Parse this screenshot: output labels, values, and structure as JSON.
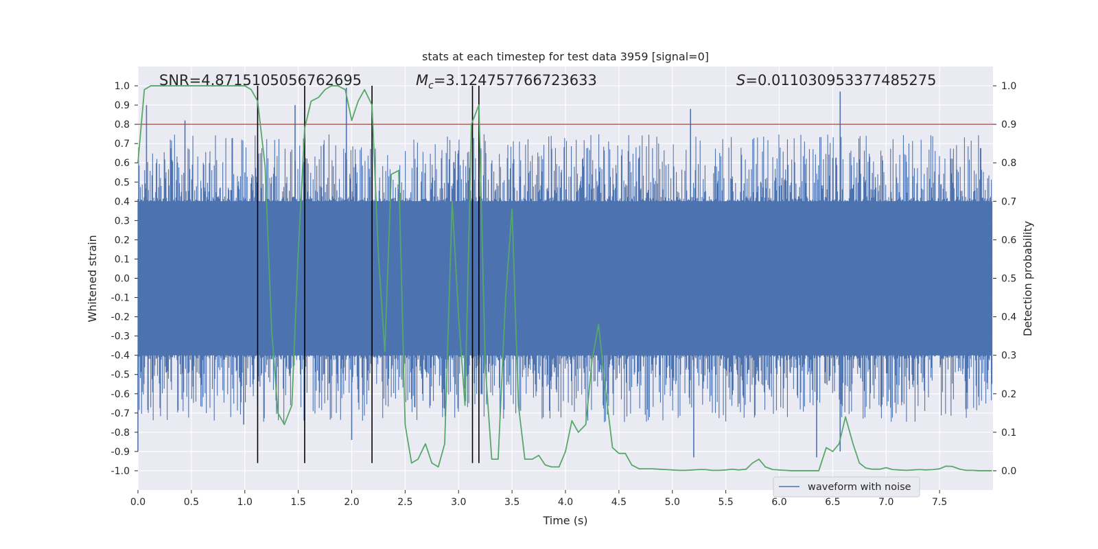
{
  "chart_data": {
    "type": "line",
    "title": "stats at each timestep for test data 3959 [signal=0]",
    "xlabel": "Time (s)",
    "ylabel": "Whitened strain",
    "ylabel_right": "Detection probability",
    "xlim": [
      0.0,
      8.0
    ],
    "ylim": [
      -1.1,
      1.1
    ],
    "ylim_right": [
      -0.05,
      1.05
    ],
    "x_ticks": [
      0.0,
      0.5,
      1.0,
      1.5,
      2.0,
      2.5,
      3.0,
      3.5,
      4.0,
      4.5,
      5.0,
      5.5,
      6.0,
      6.5,
      7.0,
      7.5
    ],
    "x_tick_labels": [
      "0.0",
      "0.5",
      "1.0",
      "1.5",
      "2.0",
      "2.5",
      "3.0",
      "3.5",
      "4.0",
      "4.5",
      "5.0",
      "5.5",
      "6.0",
      "6.5",
      "7.0",
      "7.5"
    ],
    "y_ticks": [
      1.0,
      0.9,
      0.8,
      0.7,
      0.6,
      0.5,
      0.4,
      0.3,
      0.2,
      0.1,
      0.0,
      -0.1,
      -0.2,
      -0.3,
      -0.4,
      -0.5,
      -0.6,
      -0.7,
      -0.8,
      -0.9,
      -1.0
    ],
    "y_tick_labels": [
      "1.0",
      "0.9",
      "0.8",
      "0.7",
      "0.6",
      "0.5",
      "0.4",
      "0.3",
      "0.2",
      "0.1",
      "0.0",
      "-0.1",
      "-0.2",
      "-0.3",
      "-0.4",
      "-0.5",
      "-0.6",
      "-0.7",
      "-0.8",
      "-0.9",
      "-1.0"
    ],
    "y_ticks_right": [
      1.0,
      0.9,
      0.8,
      0.7,
      0.6,
      0.5,
      0.4,
      0.3,
      0.2,
      0.1,
      0.0
    ],
    "y_tick_labels_right": [
      "1.0",
      "0.9",
      "0.8",
      "0.7",
      "0.6",
      "0.5",
      "0.4",
      "0.3",
      "0.2",
      "0.1",
      "0.0"
    ],
    "grid": true,
    "legend": {
      "placement": "lower-right",
      "entries": [
        "waveform with noise"
      ]
    },
    "annotations": {
      "snr": "SNR=4.871510505676269​5",
      "mc_symbol": "M",
      "mc_sub": "c",
      "mc_value": "=3.124757766723633",
      "s_symbol": "S",
      "s_value": "=0.011030953377485275"
    },
    "threshold": {
      "value": 0.8,
      "axis": "left",
      "color": "#c0392b"
    },
    "vertical_markers": [
      1.12,
      1.56,
      2.19,
      3.13,
      3.19
    ],
    "series": [
      {
        "name": "waveform with noise",
        "axis": "left",
        "color": "#4c72b0",
        "kind": "dense noise",
        "x_range": [
          0.0,
          7.99
        ],
        "typical_band": [
          -0.4,
          0.4
        ],
        "notable_peaks": [
          {
            "x": 0.08,
            "y": 0.9
          },
          {
            "x": 0.44,
            "y": 0.82
          },
          {
            "x": 1.47,
            "y": 0.9
          },
          {
            "x": 1.95,
            "y": 0.99
          },
          {
            "x": 5.17,
            "y": 0.88
          },
          {
            "x": 6.57,
            "y": 0.97
          },
          {
            "x": 0.0,
            "y": -0.9
          },
          {
            "x": 0.99,
            "y": -0.76
          },
          {
            "x": 2.0,
            "y": -0.84
          },
          {
            "x": 5.2,
            "y": -0.93
          },
          {
            "x": 6.35,
            "y": -0.93
          },
          {
            "x": 6.57,
            "y": -0.9
          }
        ]
      },
      {
        "name": "",
        "axis": "right",
        "color": "#55a868",
        "x": [
          0.0,
          0.06,
          0.12,
          0.2,
          0.3,
          0.4,
          0.5,
          0.6,
          0.7,
          0.8,
          0.9,
          1.0,
          1.06,
          1.12,
          1.19,
          1.25,
          1.31,
          1.37,
          1.44,
          1.5,
          1.56,
          1.62,
          1.69,
          1.75,
          1.81,
          1.87,
          1.94,
          2.0,
          2.06,
          2.12,
          2.19,
          2.25,
          2.31,
          2.37,
          2.44,
          2.5,
          2.56,
          2.62,
          2.69,
          2.75,
          2.81,
          2.87,
          2.94,
          3.0,
          3.06,
          3.12,
          3.19,
          3.25,
          3.31,
          3.37,
          3.44,
          3.5,
          3.56,
          3.62,
          3.69,
          3.75,
          3.81,
          3.87,
          3.94,
          4.0,
          4.06,
          4.12,
          4.19,
          4.25,
          4.31,
          4.37,
          4.44,
          4.5,
          4.56,
          4.62,
          4.69,
          4.75,
          4.81,
          4.87,
          4.94,
          5.0,
          5.06,
          5.12,
          5.19,
          5.25,
          5.31,
          5.37,
          5.44,
          5.5,
          5.56,
          5.62,
          5.69,
          5.75,
          5.81,
          5.87,
          5.94,
          6.0,
          6.06,
          6.12,
          6.19,
          6.25,
          6.31,
          6.37,
          6.44,
          6.5,
          6.56,
          6.62,
          6.69,
          6.75,
          6.81,
          6.87,
          6.94,
          7.0,
          7.06,
          7.12,
          7.19,
          7.25,
          7.31,
          7.37,
          7.44,
          7.5,
          7.56,
          7.62,
          7.69,
          7.75,
          7.81,
          7.87,
          7.94,
          7.99
        ],
        "y": [
          0.8,
          0.99,
          1.0,
          1.0,
          1.0,
          1.0,
          1.0,
          1.0,
          1.0,
          1.0,
          1.0,
          1.0,
          0.99,
          0.96,
          0.79,
          0.37,
          0.15,
          0.12,
          0.17,
          0.57,
          0.89,
          0.96,
          0.97,
          0.99,
          1.0,
          1.0,
          0.99,
          0.91,
          0.96,
          0.99,
          0.95,
          0.56,
          0.31,
          0.77,
          0.78,
          0.12,
          0.02,
          0.03,
          0.07,
          0.02,
          0.01,
          0.07,
          0.7,
          0.4,
          0.17,
          0.9,
          0.95,
          0.27,
          0.03,
          0.03,
          0.45,
          0.68,
          0.17,
          0.03,
          0.03,
          0.04,
          0.015,
          0.01,
          0.01,
          0.05,
          0.13,
          0.1,
          0.12,
          0.29,
          0.38,
          0.22,
          0.06,
          0.045,
          0.045,
          0.015,
          0.005,
          0.005,
          0.005,
          0.004,
          0.003,
          0.002,
          0.001,
          0.001,
          0.002,
          0.003,
          0.003,
          0.001,
          0.001,
          0.002,
          0.004,
          0.002,
          0.004,
          0.02,
          0.03,
          0.01,
          0.003,
          0.002,
          0.001,
          0.0,
          0.0,
          0.0,
          0.0,
          0.0,
          0.06,
          0.05,
          0.07,
          0.14,
          0.07,
          0.02,
          0.007,
          0.004,
          0.004,
          0.008,
          0.003,
          0.002,
          0.001,
          0.002,
          0.003,
          0.002,
          0.003,
          0.005,
          0.012,
          0.011,
          0.004,
          0.001,
          0.001,
          0.0,
          0.0,
          0.0
        ]
      }
    ]
  }
}
